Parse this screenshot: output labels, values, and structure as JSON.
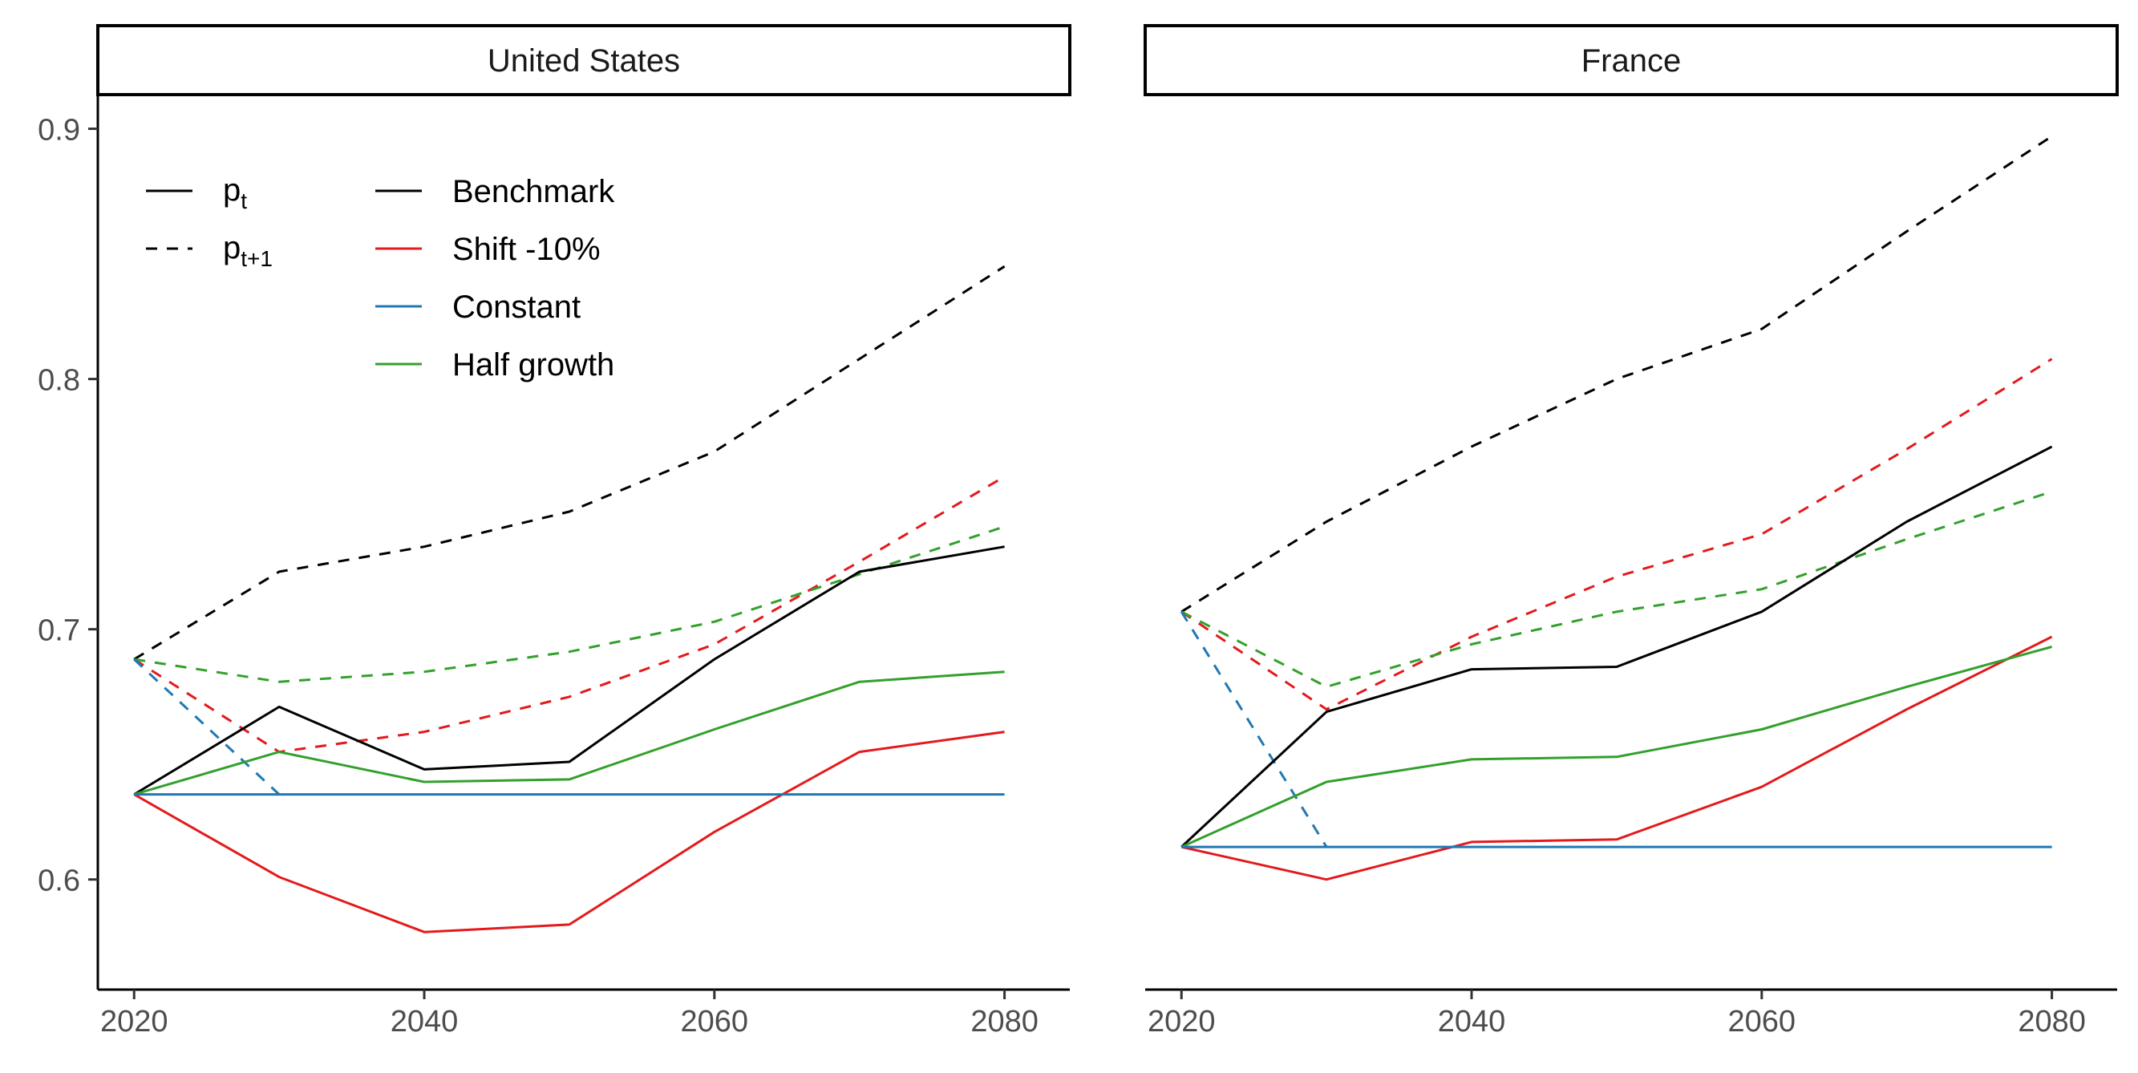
{
  "chart_data": {
    "type": "line",
    "x": [
      2020,
      2030,
      2040,
      2050,
      2060,
      2070,
      2080
    ],
    "xticks": [
      2020,
      2040,
      2060,
      2080
    ],
    "xtick_labels": [
      "2020",
      "2040",
      "2060",
      "2080"
    ],
    "xlim": [
      2017.5,
      2084.5
    ],
    "ylim": [
      0.556,
      0.913
    ],
    "yticks": [
      0.6,
      0.7,
      0.8,
      0.9
    ],
    "ytick_labels": [
      "0.6",
      "0.7",
      "0.8",
      "0.9"
    ],
    "grid": false,
    "legend_position": "top-left",
    "legend": {
      "linetypes": [
        {
          "name": "p",
          "sub": "t",
          "dash": "solid"
        },
        {
          "name": "p",
          "sub": "t+1",
          "dash": "dashed"
        }
      ],
      "scenarios": [
        {
          "name": "Benchmark",
          "color": "#000000"
        },
        {
          "name": "Shift -10%",
          "color": "#e31a1c"
        },
        {
          "name": "Constant",
          "color": "#1f78b4"
        },
        {
          "name": "Half growth",
          "color": "#33a02c"
        }
      ]
    },
    "panels": [
      {
        "title": "United States",
        "series": [
          {
            "scenario": "Benchmark",
            "measure": "p_t+1",
            "color": "#000000",
            "dash": "dashed",
            "x": [
              2020,
              2030,
              2040,
              2050,
              2060,
              2070,
              2080
            ],
            "values": [
              0.688,
              0.723,
              0.733,
              0.747,
              0.771,
              0.808,
              0.845
            ]
          },
          {
            "scenario": "Shift -10%",
            "measure": "p_t+1",
            "color": "#e31a1c",
            "dash": "dashed",
            "x": [
              2020,
              2030,
              2040,
              2050,
              2060,
              2070,
              2080
            ],
            "values": [
              0.688,
              0.651,
              0.659,
              0.673,
              0.694,
              0.727,
              0.761
            ]
          },
          {
            "scenario": "Half growth",
            "measure": "p_t+1",
            "color": "#33a02c",
            "dash": "dashed",
            "x": [
              2020,
              2030,
              2040,
              2050,
              2060,
              2070,
              2080
            ],
            "values": [
              0.688,
              0.679,
              0.683,
              0.691,
              0.703,
              0.722,
              0.741
            ]
          },
          {
            "scenario": "Constant",
            "measure": "p_t+1",
            "color": "#1f78b4",
            "dash": "dashed",
            "x": [
              2020,
              2030
            ],
            "values": [
              0.688,
              0.634
            ]
          },
          {
            "scenario": "Benchmark",
            "measure": "p_t",
            "color": "#000000",
            "dash": "solid",
            "x": [
              2020,
              2030,
              2040,
              2050,
              2060,
              2070,
              2080
            ],
            "values": [
              0.634,
              0.669,
              0.644,
              0.647,
              0.688,
              0.723,
              0.733
            ]
          },
          {
            "scenario": "Shift -10%",
            "measure": "p_t",
            "color": "#e31a1c",
            "dash": "solid",
            "x": [
              2020,
              2030,
              2040,
              2050,
              2060,
              2070,
              2080
            ],
            "values": [
              0.634,
              0.601,
              0.579,
              0.582,
              0.619,
              0.651,
              0.659
            ]
          },
          {
            "scenario": "Half growth",
            "measure": "p_t",
            "color": "#33a02c",
            "dash": "solid",
            "x": [
              2020,
              2030,
              2040,
              2050,
              2060,
              2070,
              2080
            ],
            "values": [
              0.634,
              0.651,
              0.639,
              0.64,
              0.66,
              0.679,
              0.683
            ]
          },
          {
            "scenario": "Constant",
            "measure": "p_t",
            "color": "#1f78b4",
            "dash": "solid",
            "x": [
              2020,
              2030,
              2040,
              2050,
              2060,
              2070,
              2080
            ],
            "values": [
              0.634,
              0.634,
              0.634,
              0.634,
              0.634,
              0.634,
              0.634
            ]
          }
        ]
      },
      {
        "title": "France",
        "series": [
          {
            "scenario": "Benchmark",
            "measure": "p_t+1",
            "color": "#000000",
            "dash": "dashed",
            "x": [
              2020,
              2030,
              2040,
              2050,
              2060,
              2070,
              2080
            ],
            "values": [
              0.707,
              0.743,
              0.773,
              0.8,
              0.82,
              0.859,
              0.897
            ]
          },
          {
            "scenario": "Shift -10%",
            "measure": "p_t+1",
            "color": "#e31a1c",
            "dash": "dashed",
            "x": [
              2020,
              2030,
              2040,
              2050,
              2060,
              2070,
              2080
            ],
            "values": [
              0.707,
              0.668,
              0.697,
              0.721,
              0.738,
              0.772,
              0.808
            ]
          },
          {
            "scenario": "Half growth",
            "measure": "p_t+1",
            "color": "#33a02c",
            "dash": "dashed",
            "x": [
              2020,
              2030,
              2040,
              2050,
              2060,
              2070,
              2080
            ],
            "values": [
              0.707,
              0.677,
              0.694,
              0.707,
              0.716,
              0.736,
              0.755
            ]
          },
          {
            "scenario": "Constant",
            "measure": "p_t+1",
            "color": "#1f78b4",
            "dash": "dashed",
            "x": [
              2020,
              2030
            ],
            "values": [
              0.707,
              0.613
            ]
          },
          {
            "scenario": "Benchmark",
            "measure": "p_t",
            "color": "#000000",
            "dash": "solid",
            "x": [
              2020,
              2030,
              2040,
              2050,
              2060,
              2070,
              2080
            ],
            "values": [
              0.613,
              0.667,
              0.684,
              0.685,
              0.707,
              0.743,
              0.773
            ]
          },
          {
            "scenario": "Shift -10%",
            "measure": "p_t",
            "color": "#e31a1c",
            "dash": "solid",
            "x": [
              2020,
              2030,
              2040,
              2050,
              2060,
              2070,
              2080
            ],
            "values": [
              0.613,
              0.6,
              0.615,
              0.616,
              0.637,
              0.668,
              0.697
            ]
          },
          {
            "scenario": "Half growth",
            "measure": "p_t",
            "color": "#33a02c",
            "dash": "solid",
            "x": [
              2020,
              2030,
              2040,
              2050,
              2060,
              2070,
              2080
            ],
            "values": [
              0.613,
              0.639,
              0.648,
              0.649,
              0.66,
              0.677,
              0.693
            ]
          },
          {
            "scenario": "Constant",
            "measure": "p_t",
            "color": "#1f78b4",
            "dash": "solid",
            "x": [
              2020,
              2030,
              2040,
              2050,
              2060,
              2070,
              2080
            ],
            "values": [
              0.613,
              0.613,
              0.613,
              0.613,
              0.613,
              0.613,
              0.613
            ]
          }
        ]
      }
    ]
  }
}
